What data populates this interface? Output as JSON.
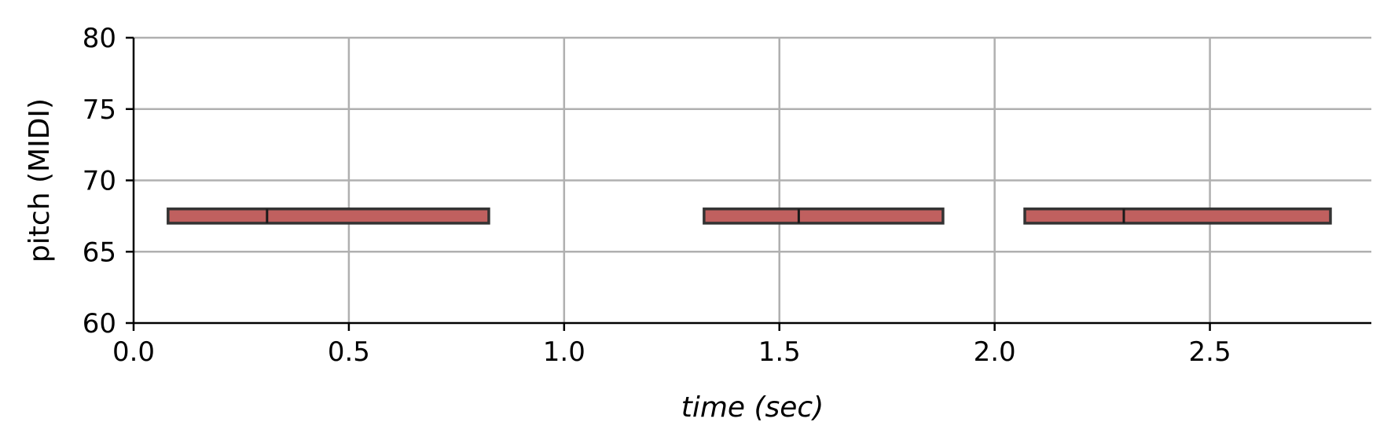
{
  "chart_data": {
    "type": "bar",
    "xlabel": "time (sec)",
    "ylabel": "pitch (MIDI)",
    "xlim": [
      0.0,
      2.875
    ],
    "ylim": [
      60,
      80
    ],
    "xticks": [
      "0.0",
      "0.5",
      "1.0",
      "1.5",
      "2.0",
      "2.5"
    ],
    "yticks": [
      "60",
      "65",
      "70",
      "75",
      "80"
    ],
    "grid": true,
    "note_color": "#c0605f",
    "note_edge_color": "#333333",
    "notes": [
      {
        "start": 0.08,
        "end": 0.825,
        "pitch": 67,
        "divider": 0.31
      },
      {
        "start": 1.325,
        "end": 1.88,
        "pitch": 67,
        "divider": 1.545
      },
      {
        "start": 2.07,
        "end": 2.78,
        "pitch": 67,
        "divider": 2.3
      }
    ]
  }
}
